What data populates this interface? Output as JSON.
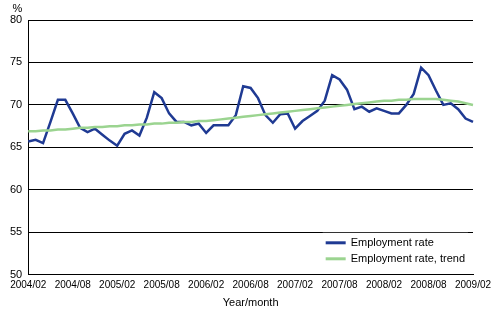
{
  "chart_data": {
    "type": "line",
    "ylabel": "%",
    "xlabel": "Year/month",
    "categories": [
      "2004/02",
      null,
      null,
      null,
      null,
      null,
      "2004/08",
      null,
      null,
      null,
      null,
      null,
      "2005/02",
      null,
      null,
      null,
      null,
      null,
      "2005/08",
      null,
      null,
      null,
      null,
      null,
      "2006/02",
      null,
      null,
      null,
      null,
      null,
      "2006/08",
      null,
      null,
      null,
      null,
      null,
      "2007/02",
      null,
      null,
      null,
      null,
      null,
      "2007/08",
      null,
      null,
      null,
      null,
      null,
      "2008/02",
      null,
      null,
      null,
      null,
      null,
      "2008/08",
      null,
      null,
      null,
      null,
      null,
      "2009/02"
    ],
    "series": [
      {
        "name": "Employment rate",
        "color": "#1f3a93",
        "values": [
          65.7,
          65.9,
          65.5,
          68.0,
          70.6,
          70.6,
          69.0,
          67.3,
          66.8,
          67.2,
          66.5,
          65.8,
          65.2,
          66.6,
          67.0,
          66.4,
          68.5,
          71.5,
          70.8,
          69.0,
          68.0,
          68.0,
          67.6,
          67.8,
          66.7,
          67.6,
          67.6,
          67.6,
          68.8,
          72.2,
          72.0,
          70.8,
          68.8,
          67.9,
          68.9,
          69.0,
          67.2,
          68.1,
          68.7,
          69.3,
          70.5,
          73.5,
          73.0,
          71.8,
          69.5,
          69.8,
          69.2,
          69.6,
          69.3,
          69.0,
          69.0,
          70.0,
          71.3,
          74.4,
          73.5,
          71.7,
          70.0,
          70.2,
          69.5,
          68.4,
          68.0
        ]
      },
      {
        "name": "Employment rate, trend",
        "color": "#9bd490",
        "values": [
          66.9,
          66.9,
          67.0,
          67.0,
          67.1,
          67.1,
          67.2,
          67.3,
          67.3,
          67.4,
          67.4,
          67.5,
          67.5,
          67.6,
          67.6,
          67.7,
          67.7,
          67.8,
          67.8,
          67.9,
          67.9,
          68.0,
          68.0,
          68.1,
          68.1,
          68.2,
          68.3,
          68.4,
          68.5,
          68.6,
          68.7,
          68.8,
          68.9,
          69.0,
          69.1,
          69.2,
          69.3,
          69.4,
          69.5,
          69.6,
          69.7,
          69.8,
          69.9,
          70.0,
          70.1,
          70.2,
          70.3,
          70.4,
          70.5,
          70.5,
          70.6,
          70.6,
          70.7,
          70.7,
          70.7,
          70.7,
          70.6,
          70.5,
          70.4,
          70.2,
          70.0
        ]
      }
    ],
    "ylim": [
      50,
      80
    ],
    "yticks": [
      50,
      55,
      60,
      65,
      70,
      75,
      80
    ],
    "grid": true,
    "legend": "lower right"
  }
}
